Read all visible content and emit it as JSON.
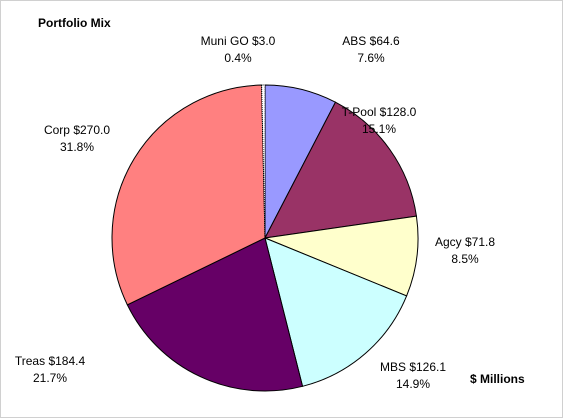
{
  "chart_data": {
    "type": "pie",
    "title": "Portfolio Mix",
    "unit_label": "$ Millions",
    "categories": [
      "ABS",
      "T-Pool",
      "Agcy",
      "MBS",
      "Treas",
      "Corp",
      "Muni GO"
    ],
    "values": [
      64.6,
      128.0,
      71.8,
      126.1,
      184.4,
      270.0,
      3.0
    ],
    "value_labels": [
      "$64.6",
      "$128.0",
      "$71.8",
      "$126.1",
      "$184.4",
      "$270.0",
      "$3.0"
    ],
    "percent_labels": [
      "7.6%",
      "15.1%",
      "8.5%",
      "14.9%",
      "21.7%",
      "31.8%",
      "0.4%"
    ],
    "colors": [
      "#9999ff",
      "#993366",
      "#ffffcc",
      "#ccffff",
      "#660066",
      "#ff8080",
      "#ffffff"
    ]
  }
}
